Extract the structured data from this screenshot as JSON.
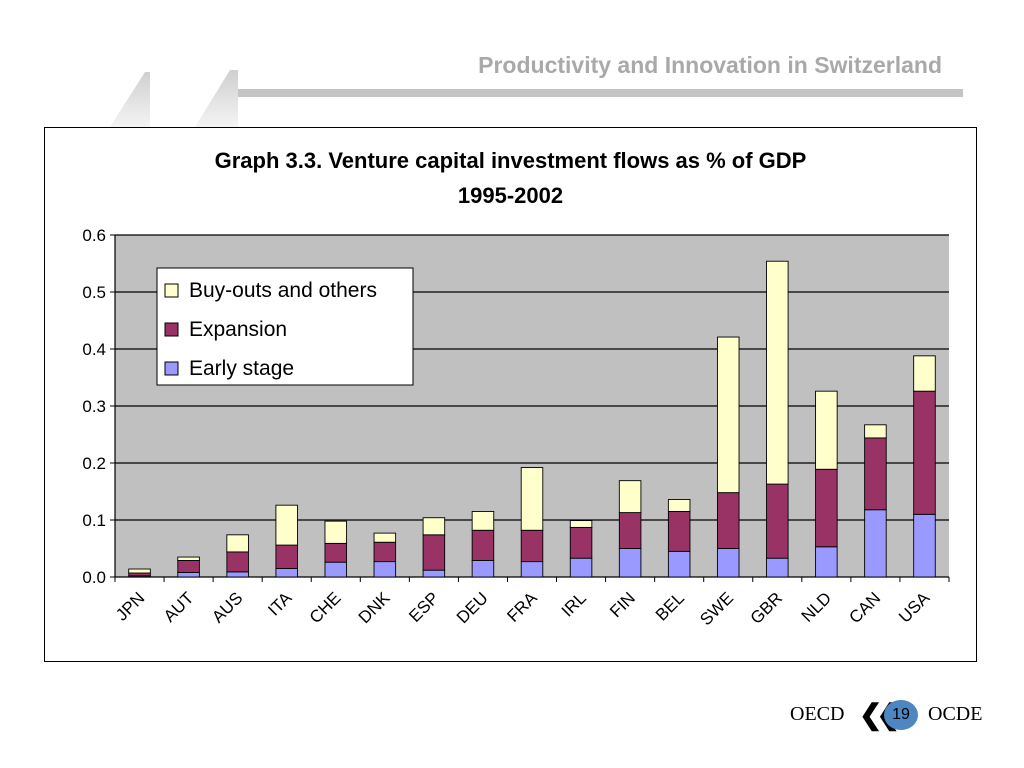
{
  "header": {
    "title": "Productivity and Innovation in Switzerland"
  },
  "footer": {
    "left_text": "OECD",
    "right_text": "OCDE",
    "page_number": "19"
  },
  "chart_data": {
    "type": "bar",
    "stacked": true,
    "title": "Graph 3.3. Venture capital investment flows as % of GDP",
    "subtitle": "1995-2002",
    "xlabel": "",
    "ylabel": "",
    "ylim": [
      0,
      0.6
    ],
    "yticks": [
      "0.0",
      "0.1",
      "0.2",
      "0.3",
      "0.4",
      "0.5",
      "0.6"
    ],
    "grid": true,
    "plot_background": "#c0c0c0",
    "legend_placement": "upper-left",
    "categories": [
      "JPN",
      "AUT",
      "AUS",
      "ITA",
      "CHE",
      "DNK",
      "ESP",
      "DEU",
      "FRA",
      "IRL",
      "FIN",
      "BEL",
      "SWE",
      "GBR",
      "NLD",
      "CAN",
      "USA"
    ],
    "series": [
      {
        "name": "Early stage",
        "color": "#9999ff",
        "values": [
          0.002,
          0.008,
          0.009,
          0.015,
          0.026,
          0.027,
          0.012,
          0.029,
          0.027,
          0.033,
          0.05,
          0.045,
          0.05,
          0.033,
          0.053,
          0.118,
          0.11
        ]
      },
      {
        "name": "Expansion",
        "color": "#993366",
        "values": [
          0.005,
          0.021,
          0.035,
          0.041,
          0.033,
          0.034,
          0.062,
          0.053,
          0.055,
          0.054,
          0.063,
          0.07,
          0.098,
          0.13,
          0.136,
          0.126,
          0.216
        ]
      },
      {
        "name": "Buy-outs and others",
        "color": "#ffffcc",
        "values": [
          0.007,
          0.006,
          0.03,
          0.07,
          0.039,
          0.016,
          0.03,
          0.033,
          0.11,
          0.012,
          0.056,
          0.021,
          0.273,
          0.391,
          0.137,
          0.023,
          0.062
        ]
      }
    ],
    "legend_order": [
      "Buy-outs and others",
      "Expansion",
      "Early stage"
    ]
  }
}
